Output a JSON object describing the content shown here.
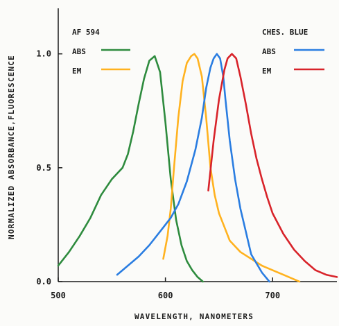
{
  "chart_data": {
    "type": "line",
    "xlabel": "WAVELENGTH, NANOMETERS",
    "ylabel": "NORMALIZED ABSORBANCE,FLUORESCENCE",
    "xlim": [
      500,
      760
    ],
    "ylim": [
      0.0,
      1.2
    ],
    "x_ticks": [
      500,
      600,
      700
    ],
    "x_tick_labels": [
      "500",
      "600",
      "700"
    ],
    "y_ticks": [
      0.0,
      0.5,
      1.0
    ],
    "y_tick_labels": [
      "0.0",
      "0.5",
      "1.0"
    ],
    "grid": false,
    "legend_groups": [
      {
        "title": "AF 594",
        "placement": "top-left",
        "entries": [
          {
            "label": "ABS",
            "color": "#2e8b3e"
          },
          {
            "label": "EM",
            "color": "#ffb21f"
          }
        ]
      },
      {
        "title": "CHES. BLUE",
        "placement": "top-right",
        "entries": [
          {
            "label": "ABS",
            "color": "#2a7de1"
          },
          {
            "label": "EM",
            "color": "#d8232a"
          }
        ]
      }
    ],
    "series": [
      {
        "group": "AF 594",
        "name": "ABS",
        "color": "#2e8b3e",
        "x": [
          500,
          510,
          520,
          530,
          540,
          550,
          560,
          565,
          570,
          575,
          580,
          585,
          590,
          595,
          600,
          605,
          610,
          615,
          620,
          625,
          630,
          635
        ],
        "y": [
          0.07,
          0.13,
          0.2,
          0.28,
          0.38,
          0.45,
          0.5,
          0.56,
          0.66,
          0.78,
          0.89,
          0.97,
          0.99,
          0.92,
          0.7,
          0.45,
          0.27,
          0.16,
          0.09,
          0.05,
          0.02,
          0.0
        ]
      },
      {
        "group": "AF 594",
        "name": "EM",
        "color": "#ffb21f",
        "x": [
          598,
          602,
          605,
          608,
          612,
          616,
          620,
          624,
          627,
          630,
          634,
          638,
          642,
          646,
          650,
          655,
          660,
          670,
          680,
          690,
          700,
          710,
          720,
          725
        ],
        "y": [
          0.1,
          0.2,
          0.32,
          0.5,
          0.72,
          0.88,
          0.96,
          0.99,
          1.0,
          0.98,
          0.9,
          0.72,
          0.5,
          0.38,
          0.3,
          0.24,
          0.18,
          0.13,
          0.1,
          0.07,
          0.05,
          0.03,
          0.01,
          0.0
        ]
      },
      {
        "group": "CHES. BLUE",
        "name": "ABS",
        "color": "#2a7de1",
        "x": [
          555,
          565,
          575,
          585,
          595,
          605,
          612,
          620,
          628,
          634,
          638,
          642,
          645,
          648,
          651,
          654,
          656,
          660,
          665,
          670,
          675,
          680,
          690,
          697
        ],
        "y": [
          0.03,
          0.07,
          0.11,
          0.16,
          0.22,
          0.28,
          0.34,
          0.44,
          0.58,
          0.72,
          0.85,
          0.94,
          0.98,
          1.0,
          0.98,
          0.9,
          0.8,
          0.62,
          0.45,
          0.32,
          0.22,
          0.12,
          0.04,
          0.0
        ]
      },
      {
        "group": "CHES. BLUE",
        "name": "EM",
        "color": "#d8232a",
        "x": [
          640,
          645,
          650,
          655,
          658,
          662,
          666,
          670,
          675,
          680,
          685,
          690,
          695,
          700,
          710,
          720,
          730,
          740,
          750,
          760
        ],
        "y": [
          0.4,
          0.62,
          0.8,
          0.93,
          0.98,
          1.0,
          0.98,
          0.9,
          0.78,
          0.65,
          0.54,
          0.45,
          0.37,
          0.3,
          0.21,
          0.14,
          0.09,
          0.05,
          0.03,
          0.02
        ]
      }
    ]
  }
}
